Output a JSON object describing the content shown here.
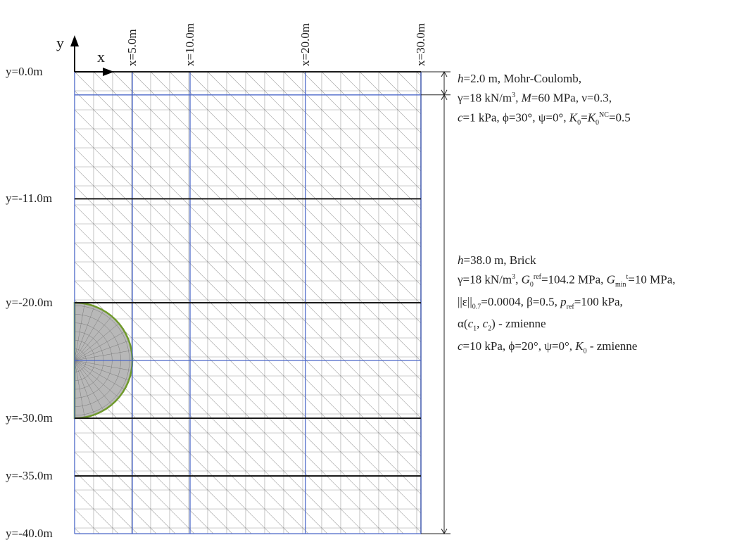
{
  "axes": {
    "y_letter": "y",
    "x_letter": "x"
  },
  "y_levels": [
    {
      "value": 0.0,
      "label": "y=0.0m",
      "kind": "boundary"
    },
    {
      "value": -2.0,
      "label": "",
      "kind": "layer"
    },
    {
      "value": -11.0,
      "label": "y=-11.0m",
      "kind": "section"
    },
    {
      "value": -20.0,
      "label": "y=-20.0m",
      "kind": "section"
    },
    {
      "value": -25.0,
      "label": "",
      "kind": "layer"
    },
    {
      "value": -30.0,
      "label": "y=-30.0m",
      "kind": "section"
    },
    {
      "value": -35.0,
      "label": "y=-35.0m",
      "kind": "section"
    },
    {
      "value": -40.0,
      "label": "y=-40.0m",
      "kind": "boundary"
    }
  ],
  "x_levels": [
    {
      "value": 5.0,
      "label": "x=5.0m"
    },
    {
      "value": 10.0,
      "label": "x=10.0m"
    },
    {
      "value": 20.0,
      "label": "x=20.0m"
    },
    {
      "value": 30.0,
      "label": "x=30.0m"
    }
  ],
  "tunnel": {
    "center_y": -25.0,
    "radius": 5.0
  },
  "domain": {
    "width": 30.0,
    "depth": 40.0
  },
  "colors": {
    "boundary": "#1a1a1a",
    "blue_line": "#4a66c8",
    "mesh": "#9a9a9a",
    "tunnel_edge": "#6f9a2a",
    "dim": "#222222"
  },
  "layer1": {
    "line1": {
      "h": "h",
      "eq": "=2.0 m, Mohr-Coulomb,"
    },
    "line2": {
      "a": "γ=18 kN/m",
      "sup": "3",
      "b": ", ",
      "m": "M",
      "c": "=60 MPa, ν=0.3,"
    },
    "line3": {
      "c": "c",
      "a": "=1 kPa, ϕ=30°, ψ=0°, ",
      "k": "K",
      "ksub": "0",
      "b": "=",
      "k2": "K",
      "k2sub": "0",
      "k2sup": "NC",
      "d": "=0.5"
    }
  },
  "layer2": {
    "line1": {
      "h": "h",
      "eq": "=38.0 m, Brick"
    },
    "line2": {
      "a": "γ=18 kN/m",
      "sup": "3",
      "b": ", ",
      "g": "G",
      "gsub": "0",
      "gsup": "ref",
      "c": "=104.2 MPa, ",
      "g2": "G",
      "g2sub": "min",
      "g2sup": "t",
      "d": "=10 MPa,"
    },
    "line3": {
      "a": "||ε||",
      "asub": "0.7",
      "b": "=0.0004, β=0.5, ",
      "p": "p",
      "psub": "ref",
      "c": "=100 kPa,"
    },
    "line4": {
      "a": "α(",
      "c1": "c",
      "c1sub": "1",
      "comma": ", ",
      "c2": "c",
      "c2sub": "2",
      "b": ") - zmienne"
    },
    "line5": {
      "c": "c",
      "a": "=10 kPa, ϕ=20°, ψ=0°, ",
      "k": "K",
      "ksub": "0",
      "b": " - zmienne"
    }
  }
}
